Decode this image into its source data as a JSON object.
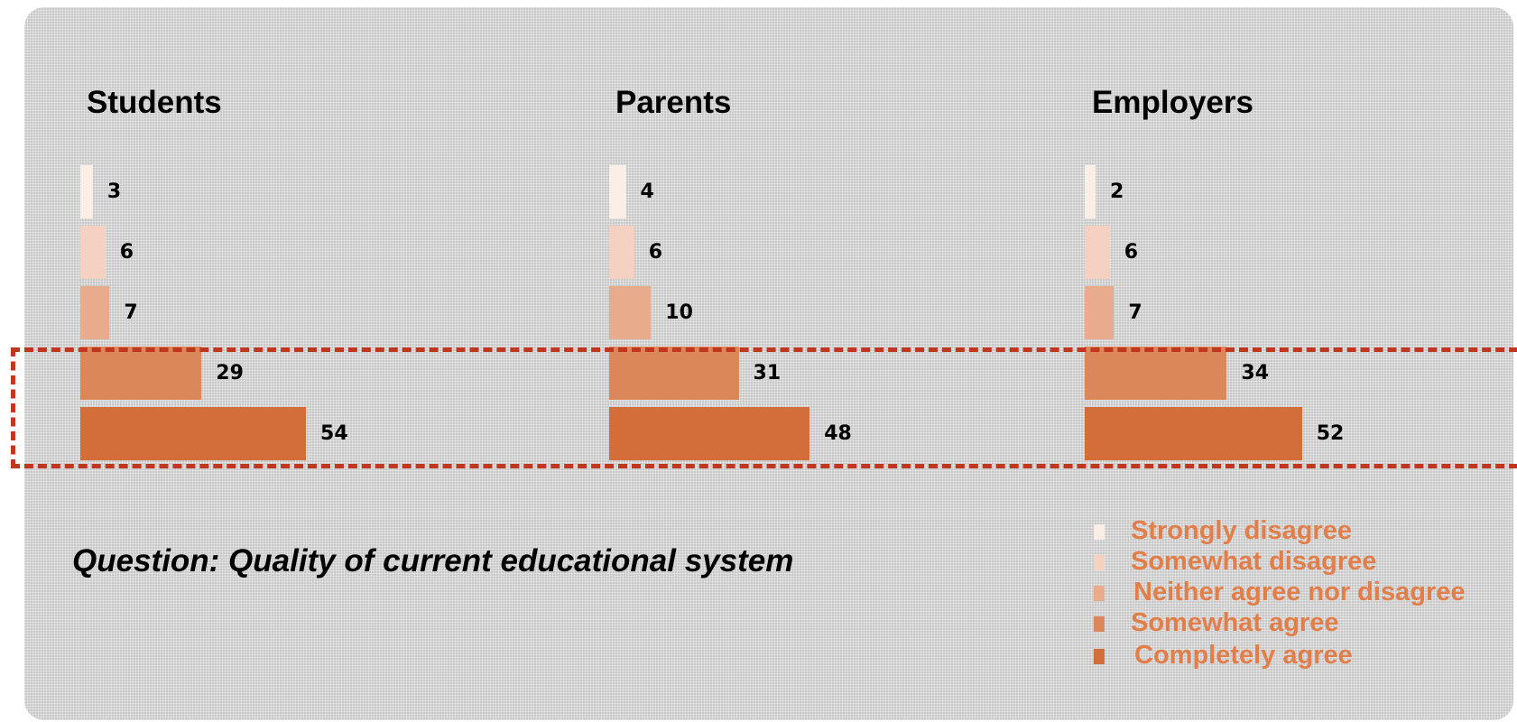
{
  "chart_data": {
    "type": "bar",
    "orientation": "horizontal",
    "question": "Question: Quality of current educational system",
    "categories": [
      "Strongly disagree",
      "Somewhat disagree",
      "Neither agree nor disagree",
      "Somewhat agree",
      "Completely agree"
    ],
    "category_colors": [
      "#fbeee6",
      "#f4d1c0",
      "#e8ac8c",
      "#dc8759",
      "#d36d39"
    ],
    "legend_text_color": "#e27e49",
    "highlight_color": "#c0361f",
    "highlighted_categories": [
      "Somewhat agree",
      "Completely agree"
    ],
    "groups": [
      {
        "title": "Students",
        "values": [
          3,
          6,
          7,
          29,
          54
        ]
      },
      {
        "title": "Parents",
        "values": [
          4,
          6,
          10,
          31,
          48
        ]
      },
      {
        "title": "Employers",
        "values": [
          2,
          6,
          7,
          34,
          52
        ]
      }
    ]
  }
}
